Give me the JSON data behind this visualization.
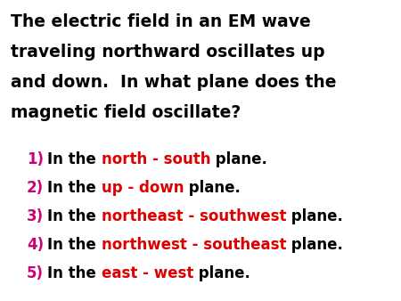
{
  "background_color": "#ffffff",
  "title_lines": [
    "The electric field in an EM wave",
    "traveling northward oscillates up",
    "and down.  In what plane does the",
    "magnetic field oscillate?"
  ],
  "title_fontsize": 13.5,
  "title_color": "#000000",
  "items": [
    {
      "number": "1)",
      "number_color": "#cc0077",
      "prefix": "In the ",
      "highlight": "north - south",
      "highlight_color": "#dd0000",
      "suffix": " plane."
    },
    {
      "number": "2)",
      "number_color": "#cc0077",
      "prefix": "In the ",
      "highlight": "up - down",
      "highlight_color": "#dd0000",
      "suffix": " plane."
    },
    {
      "number": "3)",
      "number_color": "#cc0077",
      "prefix": "In the ",
      "highlight": "northeast - southwest",
      "highlight_color": "#dd0000",
      "suffix": " plane."
    },
    {
      "number": "4)",
      "number_color": "#cc0077",
      "prefix": "In the ",
      "highlight": "northwest - southeast",
      "highlight_color": "#dd0000",
      "suffix": " plane."
    },
    {
      "number": "5)",
      "number_color": "#cc0077",
      "prefix": "In the ",
      "highlight": "east - west",
      "highlight_color": "#dd0000",
      "suffix": " plane."
    }
  ],
  "item_fontsize": 12.0
}
